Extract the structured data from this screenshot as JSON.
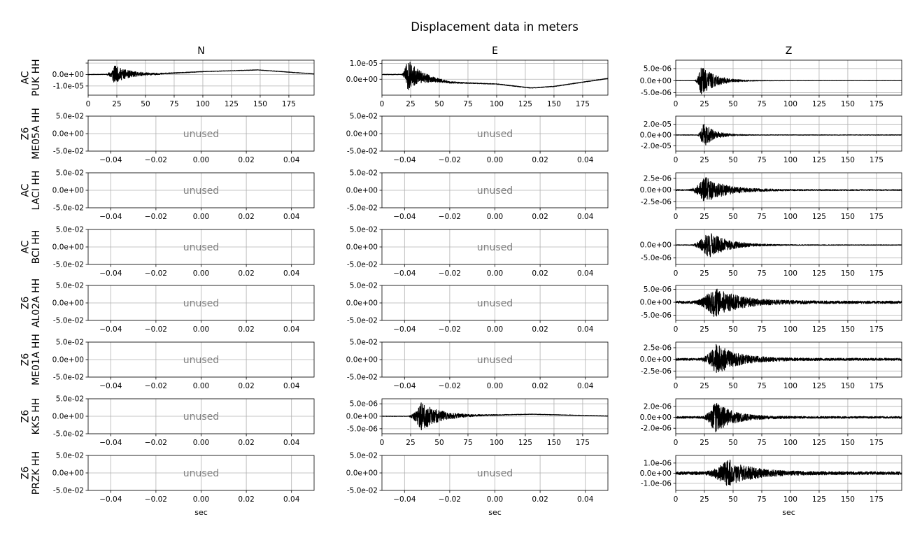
{
  "chart_data": {
    "type": "line",
    "title": "Displacement data in meters",
    "columns": [
      "N",
      "E",
      "Z"
    ],
    "xlabel": "sec",
    "unused_label": "unused",
    "time_xlim": [
      0,
      197
    ],
    "time_xticks": [
      "0",
      "25",
      "50",
      "75",
      "100",
      "125",
      "150",
      "175"
    ],
    "unused_xlim": [
      -0.05,
      0.05
    ],
    "unused_xticks": [
      "−0.04",
      "−0.02",
      "0.00",
      "0.02",
      "0.04"
    ],
    "unused_ylim": [
      -0.05,
      0.05
    ],
    "unused_yticks": [
      "-5.0e-02",
      "0.0e+00",
      "5.0e-02"
    ],
    "rows": [
      {
        "network": "AC",
        "station": "PUK HH",
        "panels": [
          {
            "used": true,
            "ylim": [
              -1.8e-05,
              1.25e-05
            ],
            "yticks": [
              1e-05,
              0,
              -1e-05
            ],
            "ytick_labels": [
              "",
              "0.0e+00",
              "-1.0e-05"
            ],
            "onset": 15,
            "peak": 22,
            "amp": 8e-06,
            "decay": 14,
            "noise": 2e-07,
            "seed": 11,
            "drift": [
              [
                0,
                0
              ],
              [
                60,
                5e-07
              ],
              [
                100,
                2.5e-06
              ],
              [
                148,
                4e-06
              ],
              [
                197,
                5e-07
              ]
            ]
          },
          {
            "used": true,
            "ylim": [
              -1e-05,
              1.2e-05
            ],
            "yticks": [
              1e-05,
              0
            ],
            "ytick_labels": [
              "1.0e-05",
              "0.0e+00"
            ],
            "onset": 17,
            "peak": 22,
            "amp": 1e-05,
            "decay": 12,
            "noise": 2e-07,
            "seed": 12,
            "drift": [
              [
                0,
                3e-06
              ],
              [
                20,
                3e-06
              ],
              [
                60,
                -2e-06
              ],
              [
                100,
                -3e-06
              ],
              [
                130,
                -5.5e-06
              ],
              [
                150,
                -4.5e-06
              ],
              [
                197,
                5e-07
              ]
            ]
          },
          {
            "used": true,
            "ylim": [
              -6e-06,
              8.5e-06
            ],
            "yticks": [
              5e-06,
              0,
              -5e-06
            ],
            "ytick_labels": [
              "5.0e-06",
              "0.0e+00",
              "-5.0e-06"
            ],
            "onset": 16,
            "peak": 22,
            "amp": 6.5e-06,
            "decay": 12,
            "noise": 5e-08,
            "seed": 13
          }
        ]
      },
      {
        "network": "Z6",
        "station": "ME05A HH",
        "panels": [
          {
            "used": false
          },
          {
            "used": false
          },
          {
            "used": true,
            "ylim": [
              -3e-05,
              3.5e-05
            ],
            "yticks": [
              2e-05,
              0,
              -2e-05
            ],
            "ytick_labels": [
              "2.0e-05",
              "0.0e+00",
              "-2.0e-05"
            ],
            "onset": 18,
            "peak": 24,
            "amp": 2.3e-05,
            "decay": 9,
            "noise": 5e-07,
            "seed": 21
          }
        ]
      },
      {
        "network": "AC",
        "station": "LACI HH",
        "panels": [
          {
            "used": false
          },
          {
            "used": false
          },
          {
            "used": true,
            "ylim": [
              -3.8e-06,
              3.7e-06
            ],
            "yticks": [
              2.5e-06,
              0,
              -2.5e-06
            ],
            "ytick_labels": [
              "2.5e-06",
              "0.0e+00",
              "-2.5e-06"
            ],
            "onset": 10,
            "peak": 25,
            "amp": 2.8e-06,
            "decay": 18,
            "noise": 1.2e-07,
            "seed": 31
          }
        ]
      },
      {
        "network": "AC",
        "station": "BCI HH",
        "panels": [
          {
            "used": false
          },
          {
            "used": false
          },
          {
            "used": true,
            "ylim": [
              -7.5e-06,
              6e-06
            ],
            "yticks": [
              0,
              -5e-06
            ],
            "ytick_labels": [
              "0.0e+00",
              "-5.0e-06"
            ],
            "onset": 12,
            "peak": 28,
            "amp": 5.5e-06,
            "decay": 16,
            "noise": 1.2e-07,
            "seed": 41
          }
        ]
      },
      {
        "network": "Z6",
        "station": "AL02A HH",
        "panels": [
          {
            "used": false
          },
          {
            "used": false
          },
          {
            "used": true,
            "ylim": [
              -7e-06,
              6.5e-06
            ],
            "yticks": [
              5e-06,
              0,
              -5e-06
            ],
            "ytick_labels": [
              "5.0e-06",
              "0.0e+00",
              "-5.0e-06"
            ],
            "onset": 14,
            "peak": 33,
            "amp": 5.5e-06,
            "decay": 22,
            "noise": 5e-07,
            "seed": 51
          }
        ]
      },
      {
        "network": "Z6",
        "station": "ME01A HH",
        "panels": [
          {
            "used": false
          },
          {
            "used": false
          },
          {
            "used": true,
            "ylim": [
              -3.8e-06,
              3.7e-06
            ],
            "yticks": [
              2.5e-06,
              0,
              -2.5e-06
            ],
            "ytick_labels": [
              "2.5e-06",
              "0.0e+00",
              "-2.5e-06"
            ],
            "onset": 20,
            "peak": 35,
            "amp": 3.2e-06,
            "decay": 18,
            "noise": 2.5e-07,
            "seed": 61
          }
        ]
      },
      {
        "network": "Z6",
        "station": "KKS HH",
        "panels": [
          {
            "used": false
          },
          {
            "used": true,
            "ylim": [
              -7e-06,
              7e-06
            ],
            "yticks": [
              5e-06,
              0,
              -5e-06
            ],
            "ytick_labels": [
              "5.0e-06",
              "0.0e+00",
              "-5.0e-06"
            ],
            "onset": 22,
            "peak": 34,
            "amp": 6e-06,
            "decay": 16,
            "noise": 1e-07,
            "seed": 71,
            "drift": [
              [
                0,
                0
              ],
              [
                40,
                0
              ],
              [
                100,
                5e-07
              ],
              [
                130,
                8e-07
              ],
              [
                197,
                1e-07
              ]
            ]
          },
          {
            "used": true,
            "ylim": [
              -3e-06,
              3.4e-06
            ],
            "yticks": [
              2e-06,
              0,
              -2e-06
            ],
            "ytick_labels": [
              "2.0e-06",
              "0.0e+00",
              "-2.0e-06"
            ],
            "onset": 22,
            "peak": 34,
            "amp": 2.8e-06,
            "decay": 15,
            "noise": 1.8e-07,
            "seed": 72
          }
        ]
      },
      {
        "network": "Z6",
        "station": "PRZK HH",
        "panels": [
          {
            "used": false
          },
          {
            "used": false
          },
          {
            "used": true,
            "ylim": [
              -1.7e-06,
              1.75e-06
            ],
            "yticks": [
              1e-06,
              0,
              -1e-06
            ],
            "ytick_labels": [
              "1.0e-06",
              "0.0e+00",
              "-1.0e-06"
            ],
            "onset": 22,
            "peak": 45,
            "amp": 1.3e-06,
            "decay": 20,
            "noise": 1.5e-07,
            "seed": 81
          }
        ]
      }
    ]
  }
}
